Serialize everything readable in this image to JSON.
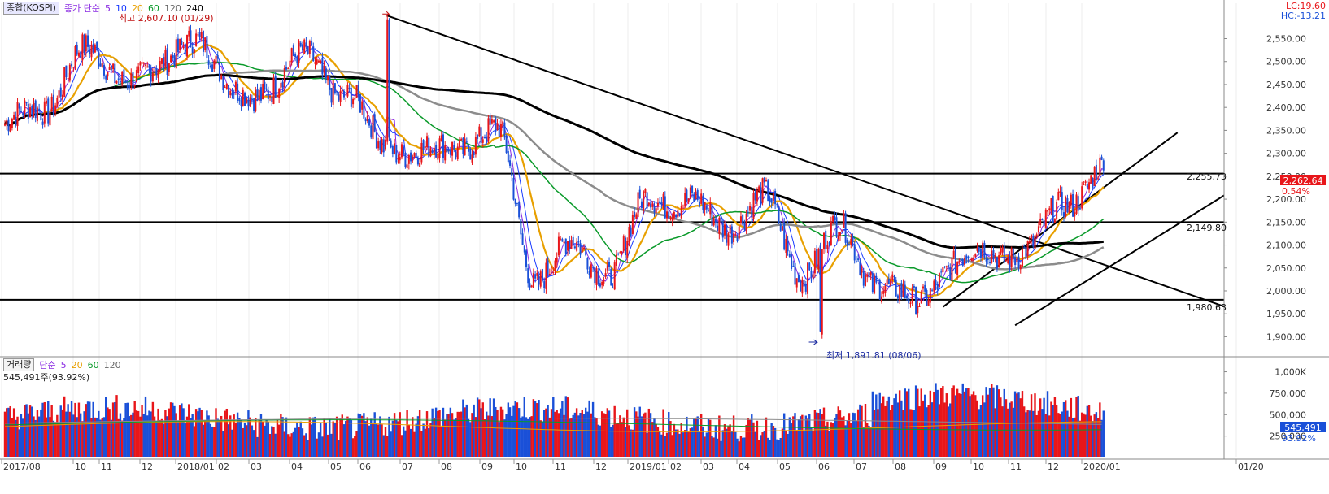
{
  "price_panel": {
    "legend_symbol": "종합(KOSPI)",
    "legend_title": "종가 단순",
    "ma_labels": [
      "5",
      "10",
      "20",
      "60",
      "120",
      "240"
    ],
    "lc": "LC:19.60",
    "hc": "HC:-13.21",
    "high_label": "최고 2,607.10 (01/29)",
    "low_label": "최저 1,891.81 (08/06)",
    "last_price": "2,262.64",
    "last_change": "0.54%",
    "hlines": [
      {
        "label": "2,255.73",
        "value": 2255.73
      },
      {
        "label": "2,149.80",
        "value": 2149.8
      },
      {
        "label": "1,980.63",
        "value": 1980.63
      }
    ]
  },
  "volume_panel": {
    "legend_title": "거래량",
    "legend_ma": "단순",
    "ma_labels": [
      "5",
      "20",
      "60",
      "120"
    ],
    "current": "545,491주(93.92%)",
    "last_value": "545,491",
    "last_pct": "93.92%"
  },
  "colors": {
    "up": "#e8161a",
    "down": "#1a50d8",
    "ma5": "#8a2be2",
    "ma10": "#1a3cff",
    "ma20": "#e8a000",
    "ma60": "#0a9a2a",
    "ma120": "#8c8c8c",
    "ma240": "#000000",
    "price_tag": "#e8161a",
    "volume_tag": "#1a50d8"
  },
  "chart_data": [
    {
      "type": "candlestick",
      "title": "종합(KOSPI)",
      "y_ticks": [
        1900,
        1950,
        2000,
        2050,
        2100,
        2150,
        2200,
        2250,
        2300,
        2350,
        2400,
        2450,
        2500,
        2550
      ],
      "ylim": [
        1860,
        2620
      ],
      "x_ticks": [
        "2017/08",
        "10",
        "11",
        "12",
        "2018/01",
        "02",
        "03",
        "04",
        "05",
        "06",
        "07",
        "08",
        "09",
        "10",
        "11",
        "12",
        "2019/01",
        "02",
        "03",
        "04",
        "05",
        "06",
        "07",
        "08",
        "09",
        "10",
        "11",
        "12",
        "2020/01",
        "01/20"
      ],
      "monthly_close": [
        {
          "month": "2017/08",
          "close": 2365
        },
        {
          "month": "2017/09",
          "close": 2395
        },
        {
          "month": "2017/10",
          "close": 2520
        },
        {
          "month": "2017/11",
          "close": 2475
        },
        {
          "month": "2017/12",
          "close": 2470
        },
        {
          "month": "2018/01",
          "close": 2566
        },
        {
          "month": "2018/02",
          "close": 2427
        },
        {
          "month": "2018/03",
          "close": 2445
        },
        {
          "month": "2018/04",
          "close": 2515
        },
        {
          "month": "2018/05",
          "close": 2423
        },
        {
          "month": "2018/06",
          "close": 2326
        },
        {
          "month": "2018/07",
          "close": 2295
        },
        {
          "month": "2018/08",
          "close": 2322
        },
        {
          "month": "2018/09",
          "close": 2343
        },
        {
          "month": "2018/10",
          "close": 2029
        },
        {
          "month": "2018/11",
          "close": 2097
        },
        {
          "month": "2018/12",
          "close": 2041
        },
        {
          "month": "2019/01",
          "close": 2204
        },
        {
          "month": "2019/02",
          "close": 2195
        },
        {
          "month": "2019/03",
          "close": 2140
        },
        {
          "month": "2019/04",
          "close": 2204
        },
        {
          "month": "2019/05",
          "close": 2041
        },
        {
          "month": "2019/06",
          "close": 2130
        },
        {
          "month": "2019/07",
          "close": 2025
        },
        {
          "month": "2019/08",
          "close": 1967
        },
        {
          "month": "2019/09",
          "close": 2063
        },
        {
          "month": "2019/10",
          "close": 2083
        },
        {
          "month": "2019/11",
          "close": 2087
        },
        {
          "month": "2019/12",
          "close": 2197
        },
        {
          "month": "2020/01",
          "close": 2262.64
        }
      ],
      "high": {
        "value": 2607.1,
        "date": "01/29"
      },
      "low": {
        "value": 1891.81,
        "date": "08/06"
      }
    },
    {
      "type": "bar",
      "title": "거래량",
      "y_ticks": [
        "250,000",
        "500,000",
        "750,000",
        "1,000K"
      ],
      "ylim": [
        0,
        1100000
      ],
      "last": 545491
    }
  ]
}
